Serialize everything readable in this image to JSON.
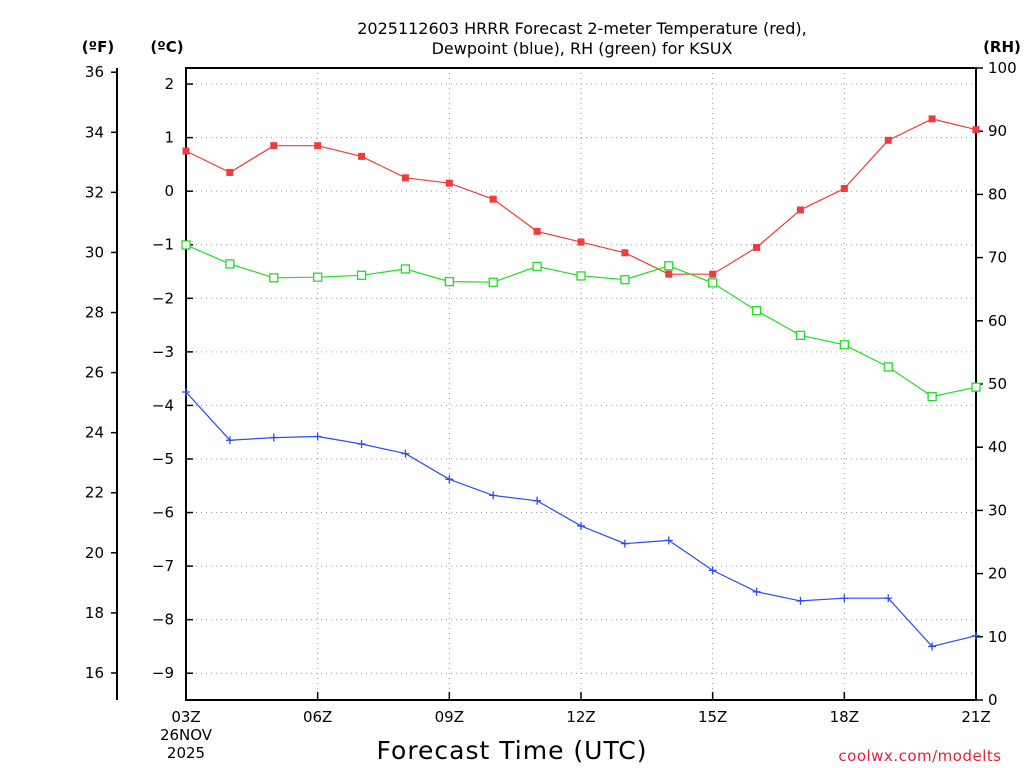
{
  "chart_data": {
    "type": "line",
    "title_line1": "2025112603 HRRR Forecast 2-meter Temperature (red),",
    "title_line2": "Dewpoint (blue), RH (green) for KSUX",
    "xlabel": "Forecast Time (UTC)",
    "date_line1": "26NOV",
    "date_line2": "2025",
    "credit": "coolwx.com/modelts",
    "unit_f": "(ºF)",
    "unit_c": "(ºC)",
    "unit_rh": "(RH)",
    "x_ticks": [
      "03Z",
      "06Z",
      "09Z",
      "12Z",
      "15Z",
      "18Z",
      "21Z"
    ],
    "x_range_hours": [
      3,
      21
    ],
    "x_hours": [
      3,
      4,
      5,
      6,
      7,
      8,
      9,
      10,
      11,
      12,
      13,
      14,
      15,
      16,
      17,
      18,
      19,
      20,
      21
    ],
    "c_axis": {
      "ticks": [
        "2",
        "1",
        "0",
        "−1",
        "−2",
        "−3",
        "−4",
        "−5",
        "−6",
        "−7",
        "−8",
        "−9"
      ],
      "range": [
        -9.5,
        2.3
      ]
    },
    "f_axis": {
      "ticks": [
        "36",
        "34",
        "32",
        "30",
        "28",
        "26",
        "24",
        "22",
        "20",
        "18",
        "16"
      ],
      "range": [
        15.1,
        36.14
      ]
    },
    "rh_axis": {
      "ticks": [
        "100",
        "90",
        "80",
        "70",
        "60",
        "50",
        "40",
        "30",
        "20",
        "10",
        "0"
      ],
      "range": [
        0,
        100
      ]
    },
    "grid": true,
    "series": [
      {
        "name": "Temperature",
        "unit": "°C",
        "color": "#f03c3c",
        "marker": "filled-square",
        "values": [
          0.75,
          0.35,
          0.85,
          0.85,
          0.65,
          0.25,
          0.15,
          -0.15,
          -0.75,
          -0.95,
          -1.15,
          -1.55,
          -1.55,
          -1.05,
          -0.35,
          0.05,
          0.95,
          1.35,
          1.15
        ]
      },
      {
        "name": "Dewpoint",
        "unit": "°C",
        "color": "#2d4cf0",
        "marker": "plus",
        "values": [
          -3.75,
          -4.65,
          -4.6,
          -4.58,
          -4.72,
          -4.9,
          -5.38,
          -5.68,
          -5.78,
          -6.25,
          -6.58,
          -6.52,
          -7.08,
          -7.48,
          -7.65,
          -7.6,
          -7.6,
          -8.5,
          -8.3
        ]
      },
      {
        "name": "RH",
        "unit": "%",
        "color": "#22dd22",
        "marker": "open-square",
        "values": [
          72,
          69,
          66.8,
          66.9,
          67.2,
          68.2,
          66.2,
          66.1,
          68.6,
          67.1,
          66.5,
          68.7,
          66,
          61.6,
          57.7,
          56.2,
          52.7,
          48,
          49.5
        ]
      }
    ]
  }
}
